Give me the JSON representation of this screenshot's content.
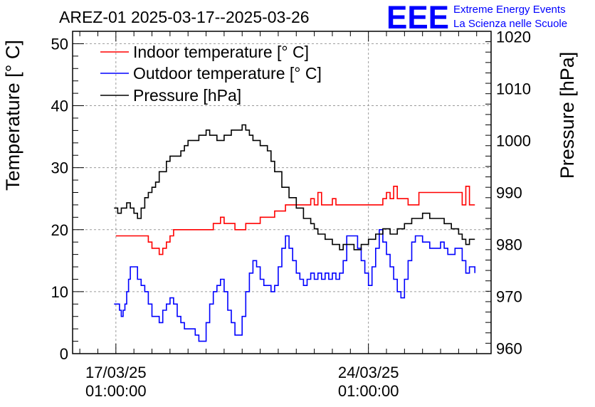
{
  "chart_data": {
    "type": "line",
    "title": "AREZ-01 2025-03-17--2025-03-26",
    "logo": {
      "mark": "EEE",
      "line1": "Extreme Energy Events",
      "line2": "La Scienza nelle Scuole",
      "color": "#0000ff"
    },
    "x": {
      "unit": "days since 17/03/25 01:00",
      "range": [
        -1.2,
        10.4
      ],
      "ticks": [
        {
          "value": 0,
          "label1": "17/03/25",
          "label2": "01:00:00"
        },
        {
          "value": 7,
          "label1": "24/03/25",
          "label2": "01:00:00"
        }
      ]
    },
    "ylabel": "Temperature [° C]",
    "ylim": [
      0,
      52
    ],
    "yticks": [
      0,
      10,
      20,
      30,
      40,
      50
    ],
    "y2label": "Pressure [hPa]",
    "y2lim": [
      959,
      1021
    ],
    "y2ticks": [
      960,
      970,
      980,
      990,
      1000,
      1010,
      1020
    ],
    "series": [
      {
        "name": "Indoor temperature [° C]",
        "color": "#ff0000",
        "axis": "left",
        "points": [
          [
            0,
            19
          ],
          [
            0.8,
            19
          ],
          [
            0.9,
            18
          ],
          [
            1.0,
            17
          ],
          [
            1.1,
            17
          ],
          [
            1.2,
            16
          ],
          [
            1.3,
            17
          ],
          [
            1.4,
            18
          ],
          [
            1.5,
            19
          ],
          [
            1.6,
            20
          ],
          [
            2.3,
            20
          ],
          [
            2.6,
            20
          ],
          [
            2.7,
            21
          ],
          [
            2.9,
            22
          ],
          [
            3.0,
            21
          ],
          [
            3.2,
            21
          ],
          [
            3.3,
            20
          ],
          [
            3.5,
            20
          ],
          [
            3.6,
            21
          ],
          [
            3.9,
            21
          ],
          [
            4.0,
            22
          ],
          [
            4.3,
            22
          ],
          [
            4.4,
            23
          ],
          [
            4.6,
            23
          ],
          [
            4.7,
            24
          ],
          [
            5.3,
            24
          ],
          [
            5.4,
            25
          ],
          [
            5.5,
            24
          ],
          [
            5.6,
            26
          ],
          [
            5.7,
            24
          ],
          [
            5.9,
            24
          ],
          [
            6.0,
            25
          ],
          [
            6.1,
            24
          ],
          [
            7.3,
            24
          ],
          [
            7.4,
            25
          ],
          [
            7.5,
            26
          ],
          [
            7.6,
            25
          ],
          [
            7.7,
            27
          ],
          [
            7.8,
            25
          ],
          [
            8.0,
            25
          ],
          [
            8.1,
            24
          ],
          [
            8.3,
            24
          ],
          [
            8.4,
            26
          ],
          [
            9.5,
            26
          ],
          [
            9.6,
            24
          ],
          [
            9.7,
            27
          ],
          [
            9.8,
            24
          ],
          [
            9.95,
            24
          ]
        ]
      },
      {
        "name": "Outdoor temperature [° C]",
        "color": "#0000ff",
        "axis": "left",
        "points": [
          [
            -0.05,
            8
          ],
          [
            0.05,
            8
          ],
          [
            0.1,
            7
          ],
          [
            0.15,
            6
          ],
          [
            0.2,
            7
          ],
          [
            0.25,
            8
          ],
          [
            0.3,
            10
          ],
          [
            0.35,
            12
          ],
          [
            0.4,
            14
          ],
          [
            0.5,
            14
          ],
          [
            0.6,
            12
          ],
          [
            0.7,
            11
          ],
          [
            0.8,
            10
          ],
          [
            0.9,
            8
          ],
          [
            1.0,
            6
          ],
          [
            1.1,
            6
          ],
          [
            1.2,
            5
          ],
          [
            1.3,
            7
          ],
          [
            1.4,
            8
          ],
          [
            1.5,
            9
          ],
          [
            1.6,
            8
          ],
          [
            1.7,
            6
          ],
          [
            1.8,
            5
          ],
          [
            1.9,
            4
          ],
          [
            2.1,
            4
          ],
          [
            2.2,
            3
          ],
          [
            2.3,
            2
          ],
          [
            2.4,
            2
          ],
          [
            2.5,
            5
          ],
          [
            2.6,
            8
          ],
          [
            2.7,
            10
          ],
          [
            2.8,
            11
          ],
          [
            2.9,
            12
          ],
          [
            3.0,
            10
          ],
          [
            3.1,
            7
          ],
          [
            3.2,
            5
          ],
          [
            3.3,
            3
          ],
          [
            3.4,
            3
          ],
          [
            3.5,
            6
          ],
          [
            3.6,
            10
          ],
          [
            3.7,
            13
          ],
          [
            3.8,
            15
          ],
          [
            3.9,
            14
          ],
          [
            4.0,
            12
          ],
          [
            4.1,
            11
          ],
          [
            4.2,
            11
          ],
          [
            4.3,
            10
          ],
          [
            4.4,
            11
          ],
          [
            4.5,
            14
          ],
          [
            4.6,
            17
          ],
          [
            4.7,
            19
          ],
          [
            4.8,
            17
          ],
          [
            4.9,
            15
          ],
          [
            5.0,
            13
          ],
          [
            5.1,
            12
          ],
          [
            5.2,
            11
          ],
          [
            5.3,
            12
          ],
          [
            5.4,
            13
          ],
          [
            5.5,
            12
          ],
          [
            5.6,
            13
          ],
          [
            5.7,
            12
          ],
          [
            5.8,
            13
          ],
          [
            5.9,
            12
          ],
          [
            6.0,
            13
          ],
          [
            6.1,
            12
          ],
          [
            6.2,
            13
          ],
          [
            6.3,
            15
          ],
          [
            6.4,
            19
          ],
          [
            6.6,
            19
          ],
          [
            6.7,
            17
          ],
          [
            6.8,
            15
          ],
          [
            6.9,
            13
          ],
          [
            7.0,
            11
          ],
          [
            7.1,
            14
          ],
          [
            7.2,
            17
          ],
          [
            7.3,
            20
          ],
          [
            7.4,
            18
          ],
          [
            7.5,
            16
          ],
          [
            7.6,
            14
          ],
          [
            7.7,
            12
          ],
          [
            7.8,
            10
          ],
          [
            7.9,
            9
          ],
          [
            8.0,
            12
          ],
          [
            8.1,
            15
          ],
          [
            8.2,
            18
          ],
          [
            8.3,
            19
          ],
          [
            8.5,
            18
          ],
          [
            8.7,
            17
          ],
          [
            8.9,
            17
          ],
          [
            9.0,
            18
          ],
          [
            9.1,
            17
          ],
          [
            9.2,
            16
          ],
          [
            9.3,
            16
          ],
          [
            9.4,
            17
          ],
          [
            9.5,
            17
          ],
          [
            9.6,
            15
          ],
          [
            9.7,
            13
          ],
          [
            9.8,
            14
          ],
          [
            9.95,
            13
          ]
        ]
      },
      {
        "name": "Pressure [hPa]",
        "color": "#000000",
        "axis": "right",
        "points": [
          [
            -0.05,
            987
          ],
          [
            0.05,
            986
          ],
          [
            0.15,
            987
          ],
          [
            0.3,
            988
          ],
          [
            0.4,
            987
          ],
          [
            0.5,
            986
          ],
          [
            0.6,
            985
          ],
          [
            0.7,
            987
          ],
          [
            0.8,
            989
          ],
          [
            0.9,
            990
          ],
          [
            1.0,
            991
          ],
          [
            1.1,
            992
          ],
          [
            1.2,
            994
          ],
          [
            1.4,
            996
          ],
          [
            1.5,
            997
          ],
          [
            1.7,
            997
          ],
          [
            1.8,
            998
          ],
          [
            1.9,
            999
          ],
          [
            2.0,
            1000
          ],
          [
            2.2,
            1000
          ],
          [
            2.3,
            1001
          ],
          [
            2.5,
            1002
          ],
          [
            2.6,
            1001
          ],
          [
            2.8,
            1000
          ],
          [
            2.9,
            1000
          ],
          [
            3.0,
            1001
          ],
          [
            3.2,
            1002
          ],
          [
            3.4,
            1002
          ],
          [
            3.5,
            1003
          ],
          [
            3.6,
            1002
          ],
          [
            3.7,
            1001
          ],
          [
            3.8,
            1000
          ],
          [
            3.9,
            1000
          ],
          [
            4.0,
            999
          ],
          [
            4.2,
            998
          ],
          [
            4.3,
            996
          ],
          [
            4.4,
            994
          ],
          [
            4.6,
            991
          ],
          [
            4.8,
            989
          ],
          [
            5.0,
            987
          ],
          [
            5.2,
            985
          ],
          [
            5.4,
            984
          ],
          [
            5.5,
            983
          ],
          [
            5.6,
            982
          ],
          [
            5.8,
            981
          ],
          [
            6.0,
            980
          ],
          [
            6.2,
            979
          ],
          [
            6.3,
            980
          ],
          [
            6.5,
            980
          ],
          [
            6.6,
            979
          ],
          [
            6.8,
            980
          ],
          [
            7.0,
            981
          ],
          [
            7.2,
            982
          ],
          [
            7.4,
            983
          ],
          [
            7.6,
            982
          ],
          [
            7.8,
            983
          ],
          [
            8.0,
            984
          ],
          [
            8.2,
            985
          ],
          [
            8.4,
            985
          ],
          [
            8.5,
            986
          ],
          [
            8.6,
            986
          ],
          [
            8.7,
            985
          ],
          [
            8.9,
            985
          ],
          [
            9.1,
            984
          ],
          [
            9.3,
            983
          ],
          [
            9.5,
            982
          ],
          [
            9.6,
            981
          ],
          [
            9.7,
            980
          ],
          [
            9.8,
            981
          ],
          [
            9.95,
            981
          ]
        ]
      }
    ],
    "legend": "top-left",
    "grid": true
  }
}
